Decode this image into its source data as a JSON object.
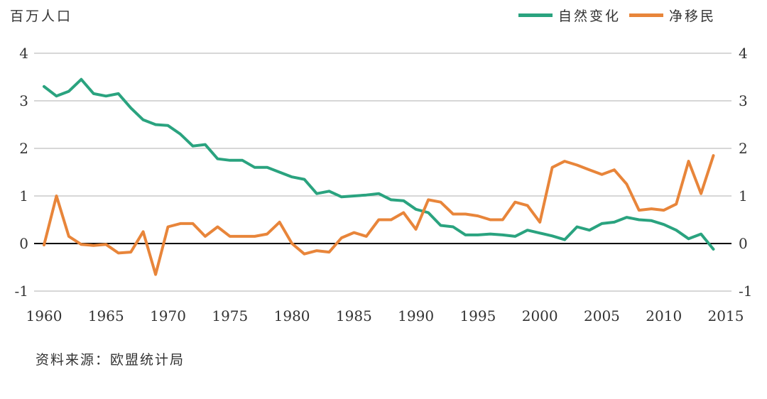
{
  "chart_data": {
    "type": "line",
    "unit_label": "百万人口",
    "source_note": "资料来源：欧盟统计局",
    "x": [
      1960,
      1961,
      1962,
      1963,
      1964,
      1965,
      1966,
      1967,
      1968,
      1969,
      1970,
      1971,
      1972,
      1973,
      1974,
      1975,
      1976,
      1977,
      1978,
      1979,
      1980,
      1981,
      1982,
      1983,
      1984,
      1985,
      1986,
      1987,
      1988,
      1989,
      1990,
      1991,
      1992,
      1993,
      1994,
      1995,
      1996,
      1997,
      1998,
      1999,
      2000,
      2001,
      2002,
      2003,
      2004,
      2005,
      2006,
      2007,
      2008,
      2009,
      2010,
      2011,
      2012,
      2013,
      2014,
      2015
    ],
    "x_tick_labels": [
      "1960",
      "1965",
      "1970",
      "1975",
      "1980",
      "1985",
      "1990",
      "1995",
      "2000",
      "2005",
      "2010",
      "2015"
    ],
    "left_axis": {
      "min": -1,
      "max": 4,
      "ticks": [
        "4",
        "3",
        "2",
        "1",
        "0",
        "-1"
      ],
      "tick_values": [
        4,
        3,
        2,
        1,
        0,
        -1
      ]
    },
    "right_axis": {
      "min": -1,
      "max": 4,
      "ticks": [
        "4",
        "3",
        "2",
        "1",
        "0",
        "-1"
      ],
      "tick_values": [
        4,
        3,
        2,
        1,
        0,
        -1
      ]
    },
    "series": [
      {
        "name": "自然变化",
        "color": "#2aa37f",
        "axis": "left",
        "values": [
          3.3,
          3.1,
          3.2,
          3.45,
          3.15,
          3.1,
          3.15,
          2.85,
          2.6,
          2.5,
          2.48,
          2.3,
          2.05,
          2.08,
          1.78,
          1.75,
          1.75,
          1.6,
          1.6,
          1.5,
          1.4,
          1.35,
          1.05,
          1.1,
          0.98,
          1.0,
          1.02,
          1.05,
          0.92,
          0.9,
          0.72,
          0.65,
          0.38,
          0.35,
          0.18,
          0.18,
          0.2,
          0.18,
          0.15,
          0.28,
          0.22,
          0.16,
          0.08,
          0.35,
          0.28,
          0.42,
          0.45,
          0.55,
          0.5,
          0.48,
          0.4,
          0.28,
          0.1,
          0.2,
          -0.12,
          null
        ]
      },
      {
        "name": "净移民",
        "color": "#e8853a",
        "axis": "right",
        "values": [
          -0.03,
          1.0,
          0.15,
          -0.02,
          -0.04,
          -0.02,
          -0.2,
          -0.18,
          0.25,
          -0.65,
          0.35,
          0.42,
          0.42,
          0.15,
          0.35,
          0.15,
          0.15,
          0.15,
          0.2,
          0.45,
          0.0,
          -0.22,
          -0.15,
          -0.18,
          0.12,
          0.23,
          0.15,
          0.5,
          0.5,
          0.65,
          0.3,
          0.92,
          0.87,
          0.62,
          0.62,
          0.58,
          0.5,
          0.5,
          0.87,
          0.8,
          0.45,
          1.6,
          1.73,
          1.65,
          1.55,
          1.45,
          1.55,
          1.25,
          0.7,
          0.73,
          0.7,
          0.83,
          1.73,
          1.05,
          1.85,
          null
        ]
      }
    ]
  }
}
